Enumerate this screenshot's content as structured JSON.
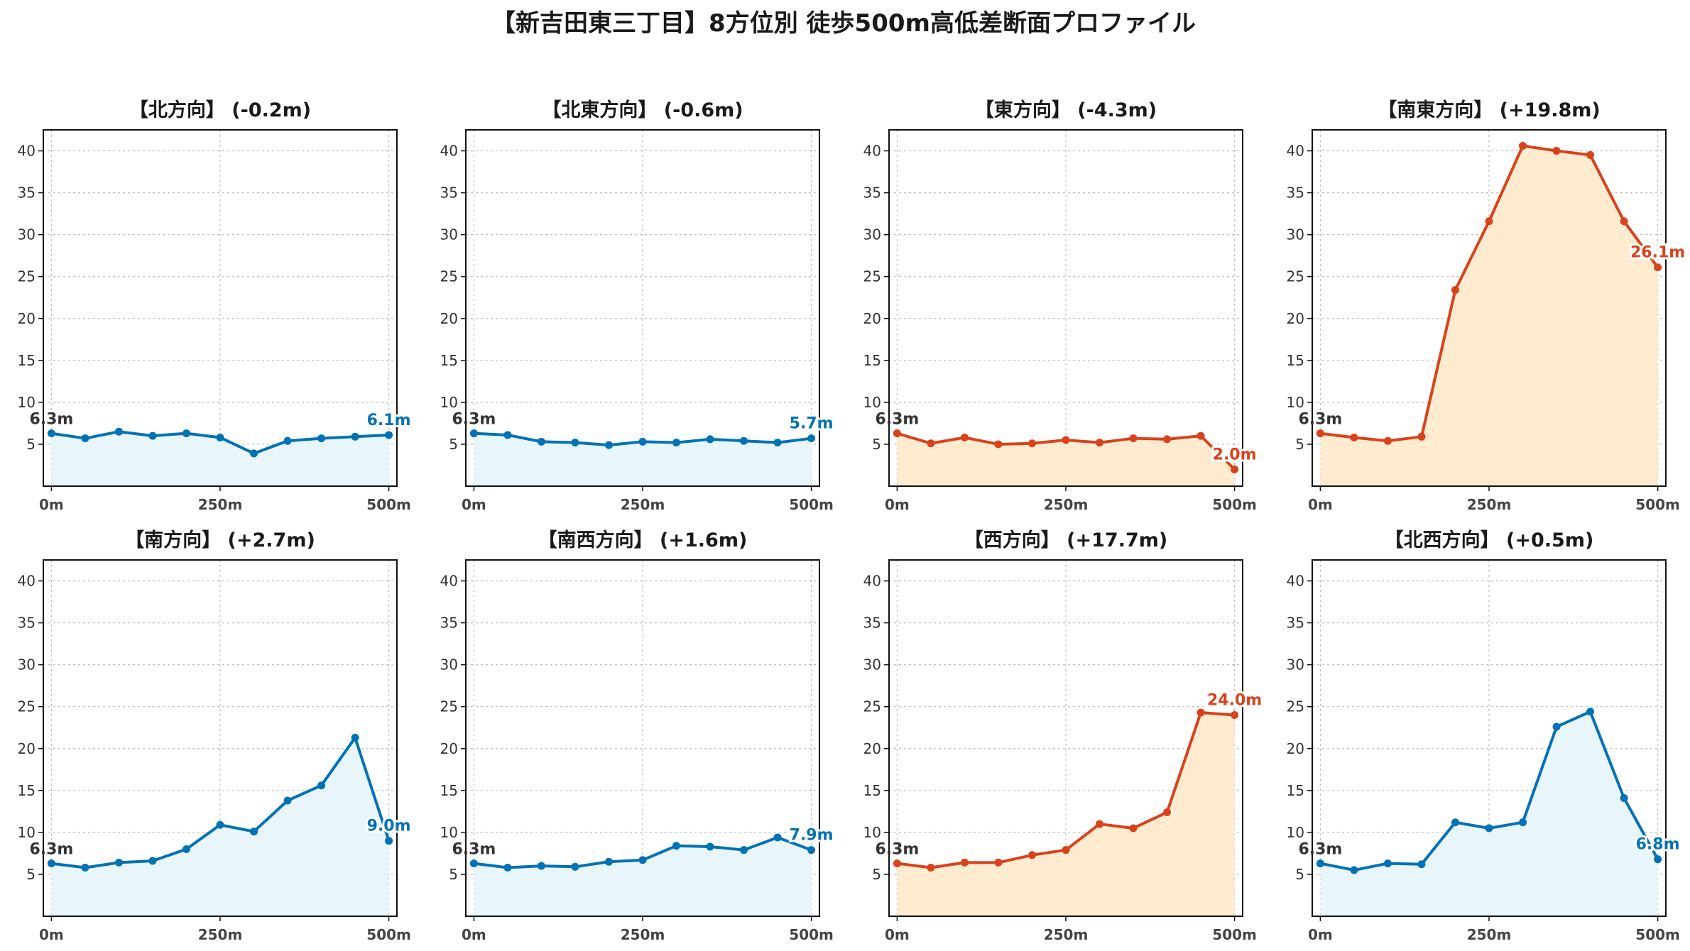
{
  "title": "【新吉田東三丁目】8方位別 徒歩500m高低差断面プロファイル",
  "colors": {
    "down_line": "#0072b5",
    "down_fill": "#e8f6fc",
    "up_line": "#d9421b",
    "up_fill": "#feebd0"
  },
  "chart_data": [
    {
      "type": "area",
      "title": "【北方向】 (-0.2m)",
      "trend": "down",
      "x": [
        0,
        50,
        100,
        150,
        200,
        250,
        300,
        350,
        400,
        450,
        500
      ],
      "y": [
        6.3,
        5.7,
        6.5,
        6.0,
        6.3,
        5.8,
        3.9,
        5.4,
        5.7,
        5.9,
        6.1
      ],
      "start_label": "6.3m",
      "end_label": "6.1m",
      "xticks": [
        "0m",
        "250m",
        "500m"
      ],
      "yticks": [
        5,
        10,
        15,
        20,
        25,
        30,
        35,
        40
      ],
      "ylim": [
        0,
        42.5
      ],
      "xlim": [
        -12,
        512
      ],
      "grid": true
    },
    {
      "type": "area",
      "title": "【北東方向】 (-0.6m)",
      "trend": "down",
      "x": [
        0,
        50,
        100,
        150,
        200,
        250,
        300,
        350,
        400,
        450,
        500
      ],
      "y": [
        6.3,
        6.1,
        5.3,
        5.2,
        4.9,
        5.3,
        5.2,
        5.6,
        5.4,
        5.2,
        5.7
      ],
      "start_label": "6.3m",
      "end_label": "5.7m",
      "xticks": [
        "0m",
        "250m",
        "500m"
      ],
      "yticks": [
        5,
        10,
        15,
        20,
        25,
        30,
        35,
        40
      ],
      "ylim": [
        0,
        42.5
      ],
      "xlim": [
        -12,
        512
      ],
      "grid": true
    },
    {
      "type": "area",
      "title": "【東方向】 (-4.3m)",
      "trend": "up",
      "x": [
        0,
        50,
        100,
        150,
        200,
        250,
        300,
        350,
        400,
        450,
        500
      ],
      "y": [
        6.3,
        5.1,
        5.8,
        5.0,
        5.1,
        5.5,
        5.2,
        5.7,
        5.6,
        6.0,
        2.0
      ],
      "start_label": "6.3m",
      "end_label": "2.0m",
      "xticks": [
        "0m",
        "250m",
        "500m"
      ],
      "yticks": [
        5,
        10,
        15,
        20,
        25,
        30,
        35,
        40
      ],
      "ylim": [
        0,
        42.5
      ],
      "xlim": [
        -12,
        512
      ],
      "grid": true
    },
    {
      "type": "area",
      "title": "【南東方向】 (+19.8m)",
      "trend": "up",
      "x": [
        0,
        50,
        100,
        150,
        200,
        250,
        300,
        350,
        400,
        450,
        500
      ],
      "y": [
        6.3,
        5.8,
        5.4,
        5.9,
        23.4,
        31.6,
        40.6,
        40.0,
        39.5,
        31.6,
        26.1
      ],
      "start_label": "6.3m",
      "end_label": "26.1m",
      "xticks": [
        "0m",
        "250m",
        "500m"
      ],
      "yticks": [
        5,
        10,
        15,
        20,
        25,
        30,
        35,
        40
      ],
      "ylim": [
        0,
        42.5
      ],
      "xlim": [
        -12,
        512
      ],
      "grid": true
    },
    {
      "type": "area",
      "title": "【南方向】 (+2.7m)",
      "trend": "down",
      "x": [
        0,
        50,
        100,
        150,
        200,
        250,
        300,
        350,
        400,
        450,
        500
      ],
      "y": [
        6.3,
        5.8,
        6.4,
        6.6,
        8.0,
        10.9,
        10.1,
        13.8,
        15.6,
        21.3,
        9.0
      ],
      "start_label": "6.3m",
      "end_label": "9.0m",
      "xticks": [
        "0m",
        "250m",
        "500m"
      ],
      "yticks": [
        5,
        10,
        15,
        20,
        25,
        30,
        35,
        40
      ],
      "ylim": [
        0,
        42.5
      ],
      "xlim": [
        -12,
        512
      ],
      "grid": true
    },
    {
      "type": "area",
      "title": "【南西方向】 (+1.6m)",
      "trend": "down",
      "x": [
        0,
        50,
        100,
        150,
        200,
        250,
        300,
        350,
        400,
        450,
        500
      ],
      "y": [
        6.3,
        5.8,
        6.0,
        5.9,
        6.5,
        6.7,
        8.4,
        8.3,
        7.9,
        9.4,
        7.9
      ],
      "start_label": "6.3m",
      "end_label": "7.9m",
      "xticks": [
        "0m",
        "250m",
        "500m"
      ],
      "yticks": [
        5,
        10,
        15,
        20,
        25,
        30,
        35,
        40
      ],
      "ylim": [
        0,
        42.5
      ],
      "xlim": [
        -12,
        512
      ],
      "grid": true
    },
    {
      "type": "area",
      "title": "【西方向】 (+17.7m)",
      "trend": "up",
      "x": [
        0,
        50,
        100,
        150,
        200,
        250,
        300,
        350,
        400,
        450,
        500
      ],
      "y": [
        6.3,
        5.8,
        6.4,
        6.4,
        7.3,
        7.9,
        11.0,
        10.5,
        12.4,
        24.3,
        24.0
      ],
      "start_label": "6.3m",
      "end_label": "24.0m",
      "xticks": [
        "0m",
        "250m",
        "500m"
      ],
      "yticks": [
        5,
        10,
        15,
        20,
        25,
        30,
        35,
        40
      ],
      "ylim": [
        0,
        42.5
      ],
      "xlim": [
        -12,
        512
      ],
      "grid": true
    },
    {
      "type": "area",
      "title": "【北西方向】 (+0.5m)",
      "trend": "down",
      "x": [
        0,
        50,
        100,
        150,
        200,
        250,
        300,
        350,
        400,
        450,
        500
      ],
      "y": [
        6.3,
        5.5,
        6.3,
        6.2,
        11.2,
        10.5,
        11.2,
        22.6,
        24.4,
        14.1,
        6.8
      ],
      "start_label": "6.3m",
      "end_label": "6.8m",
      "xticks": [
        "0m",
        "250m",
        "500m"
      ],
      "yticks": [
        5,
        10,
        15,
        20,
        25,
        30,
        35,
        40
      ],
      "ylim": [
        0,
        42.5
      ],
      "xlim": [
        -12,
        512
      ],
      "grid": true
    }
  ]
}
